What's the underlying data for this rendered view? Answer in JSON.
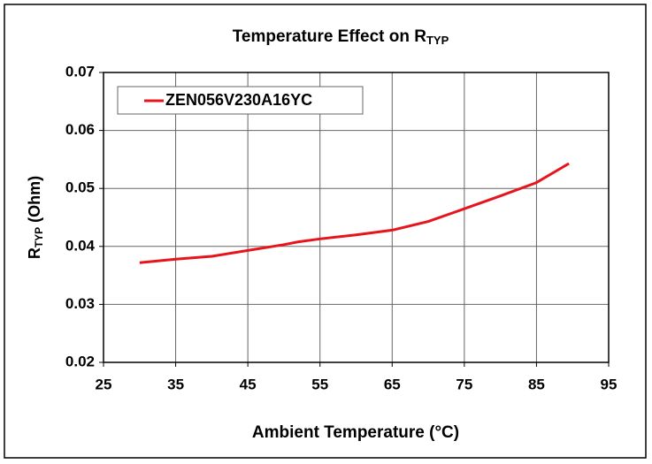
{
  "chart_data": {
    "type": "line",
    "title": [
      "Temperature Effect on R",
      "TYP"
    ],
    "x_label": "Ambient Temperature (°C)",
    "y_label": [
      "R",
      "TYP",
      " (Ohm)"
    ],
    "x": [
      30,
      35,
      40,
      45,
      50,
      52,
      55,
      60,
      65,
      70,
      75,
      80,
      85,
      89.5
    ],
    "series": [
      {
        "name": "ZEN056V230A16YC",
        "color": "#e8141c",
        "values": [
          0.0372,
          0.0378,
          0.0383,
          0.0393,
          0.0403,
          0.0408,
          0.0413,
          0.042,
          0.0428,
          0.0443,
          0.0465,
          0.0487,
          0.051,
          0.0543
        ]
      }
    ],
    "xlim": [
      25,
      95
    ],
    "xticks": [
      25,
      35,
      45,
      55,
      65,
      75,
      85,
      95
    ],
    "ylim": [
      0.02,
      0.07
    ],
    "yticks": [
      0.02,
      0.03,
      0.04,
      0.05,
      0.06,
      0.07
    ],
    "grid": true,
    "legend": "top-left"
  }
}
